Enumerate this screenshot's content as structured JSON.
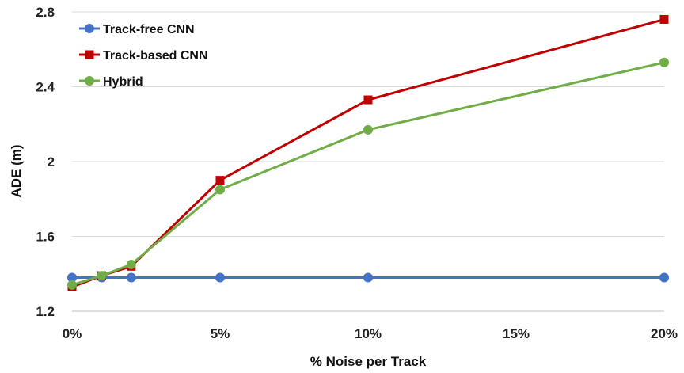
{
  "chart_data": {
    "type": "line",
    "title": "",
    "xlabel": "% Noise per Track",
    "ylabel": "ADE (m)",
    "x": [
      0,
      1,
      2,
      5,
      10,
      20
    ],
    "x_ticks": [
      0,
      5,
      10,
      15,
      20
    ],
    "x_tick_labels": [
      "0%",
      "5%",
      "10%",
      "15%",
      "20%"
    ],
    "xlim": [
      0,
      20
    ],
    "ylim": [
      1.2,
      2.8
    ],
    "y_ticks": [
      1.2,
      1.6,
      2.0,
      2.4,
      2.8
    ],
    "y_tick_labels": [
      "1.2",
      "1.6",
      "2",
      "2.4",
      "2.8"
    ],
    "grid": "horizontal",
    "legend_position": "top-left",
    "series": [
      {
        "name": "Track-free CNN",
        "color": "#4472C4",
        "values": [
          1.38,
          1.38,
          1.38,
          1.38,
          1.38,
          1.38
        ]
      },
      {
        "name": "Track-based CNN",
        "color": "#C00000",
        "values": [
          1.33,
          1.39,
          1.44,
          1.9,
          2.33,
          2.76
        ]
      },
      {
        "name": "Hybrid",
        "color": "#70AD47",
        "values": [
          1.34,
          1.39,
          1.45,
          1.85,
          2.17,
          2.53
        ]
      }
    ]
  }
}
